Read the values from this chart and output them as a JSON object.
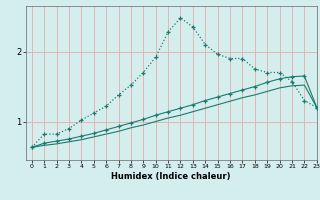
{
  "xlabel": "Humidex (Indice chaleur)",
  "bg_color": "#d4eeed",
  "grid_color": "#e8aaaa",
  "line_color": "#1a7a6e",
  "x_min": -0.5,
  "x_max": 23,
  "y_min": 0.45,
  "y_max": 2.65,
  "yticks": [
    1,
    2
  ],
  "xticks": [
    0,
    1,
    2,
    3,
    4,
    5,
    6,
    7,
    8,
    9,
    10,
    11,
    12,
    13,
    14,
    15,
    16,
    17,
    18,
    19,
    20,
    21,
    22,
    23
  ],
  "line1_x": [
    0,
    1,
    2,
    3,
    4,
    5,
    6,
    7,
    8,
    9,
    10,
    11,
    12,
    13,
    14,
    15,
    16,
    17,
    18,
    19,
    20,
    21,
    22,
    23
  ],
  "line1_y": [
    0.63,
    0.82,
    0.82,
    0.9,
    1.02,
    1.12,
    1.22,
    1.38,
    1.52,
    1.7,
    1.92,
    2.28,
    2.48,
    2.35,
    2.1,
    1.96,
    1.9,
    1.9,
    1.75,
    1.7,
    1.7,
    1.57,
    1.3,
    1.2
  ],
  "line2_x": [
    0,
    1,
    2,
    3,
    4,
    5,
    6,
    7,
    8,
    9,
    10,
    11,
    12,
    13,
    14,
    15,
    16,
    17,
    18,
    19,
    20,
    21,
    22,
    23
  ],
  "line2_y": [
    0.63,
    0.69,
    0.72,
    0.75,
    0.79,
    0.83,
    0.88,
    0.93,
    0.98,
    1.03,
    1.09,
    1.14,
    1.19,
    1.24,
    1.3,
    1.35,
    1.4,
    1.45,
    1.5,
    1.56,
    1.61,
    1.64,
    1.65,
    1.2
  ],
  "line3_x": [
    0,
    1,
    2,
    3,
    4,
    5,
    6,
    7,
    8,
    9,
    10,
    11,
    12,
    13,
    14,
    15,
    16,
    17,
    18,
    19,
    20,
    21,
    22,
    23
  ],
  "line3_y": [
    0.63,
    0.66,
    0.68,
    0.71,
    0.74,
    0.78,
    0.82,
    0.86,
    0.91,
    0.95,
    1.0,
    1.05,
    1.09,
    1.14,
    1.19,
    1.24,
    1.29,
    1.34,
    1.38,
    1.43,
    1.48,
    1.51,
    1.52,
    1.2
  ]
}
